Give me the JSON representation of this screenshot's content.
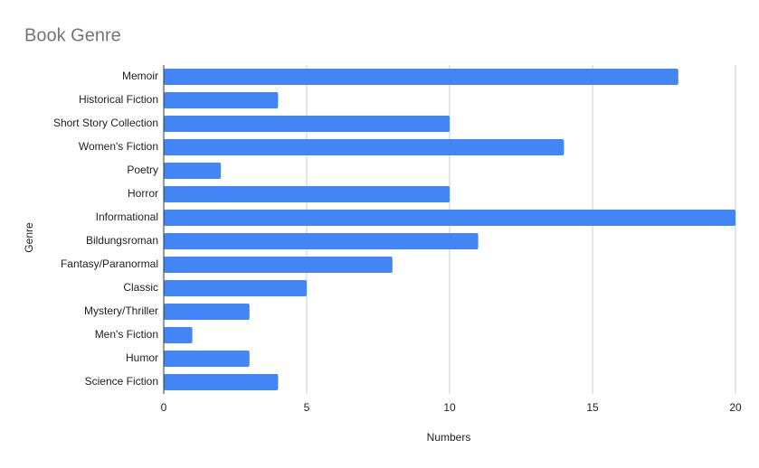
{
  "chart_data": {
    "type": "bar",
    "orientation": "horizontal",
    "title": "Book Genre",
    "x_label": "Numbers",
    "y_label": "Genre",
    "categories": [
      "Memoir",
      "Historical Fiction",
      "Short Story Collection",
      "Women's Fiction",
      "Poetry",
      "Horror",
      "Informational",
      "Bildungsroman",
      "Fantasy/Paranormal",
      "Classic",
      "Mystery/Thriller",
      "Men's Fiction",
      "Humor",
      "Science Fiction"
    ],
    "values": [
      18,
      4,
      10,
      14,
      2,
      10,
      20,
      11,
      8,
      5,
      3,
      1,
      3,
      4
    ],
    "color": "#4285f4",
    "xlim": [
      0,
      20
    ],
    "xticks": [
      0,
      5,
      10,
      15,
      20
    ],
    "grid": true
  }
}
